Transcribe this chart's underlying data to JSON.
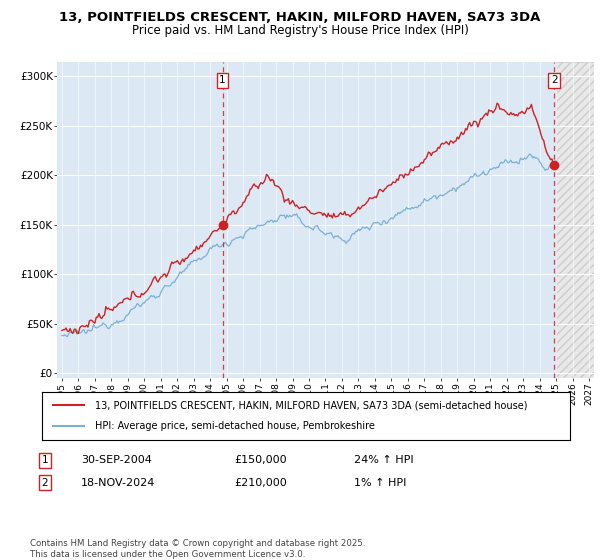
{
  "title": "13, POINTFIELDS CRESCENT, HAKIN, MILFORD HAVEN, SA73 3DA",
  "subtitle": "Price paid vs. HM Land Registry's House Price Index (HPI)",
  "ylabel_ticks": [
    "£0",
    "£50K",
    "£100K",
    "£150K",
    "£200K",
    "£250K",
    "£300K"
  ],
  "ytick_values": [
    0,
    50000,
    100000,
    150000,
    200000,
    250000,
    300000
  ],
  "ylim": [
    -5000,
    315000
  ],
  "xlim_start": 1994.7,
  "xlim_end": 2027.3,
  "sale1_date": 2004.75,
  "sale1_price": 150000,
  "sale2_date": 2024.88,
  "sale2_price": 210000,
  "hatch_start": 2025.0,
  "line_color_price": "#cc2222",
  "line_color_hpi": "#7ab0d4",
  "dot_color": "#cc2222",
  "background_color": "#dce9f5",
  "hatch_bg_color": "#e8e8e8",
  "grid_color": "#ffffff",
  "legend_label_price": "13, POINTFIELDS CRESCENT, HAKIN, MILFORD HAVEN, SA73 3DA (semi-detached house)",
  "legend_label_hpi": "HPI: Average price, semi-detached house, Pembrokeshire",
  "annotation1": "30-SEP-2004",
  "annotation1_price": "£150,000",
  "annotation1_hpi": "24% ↑ HPI",
  "annotation2": "18-NOV-2024",
  "annotation2_price": "£210,000",
  "annotation2_hpi": "1% ↑ HPI",
  "footer": "Contains HM Land Registry data © Crown copyright and database right 2025.\nThis data is licensed under the Open Government Licence v3.0.",
  "title_fontsize": 9.5,
  "subtitle_fontsize": 8.5
}
